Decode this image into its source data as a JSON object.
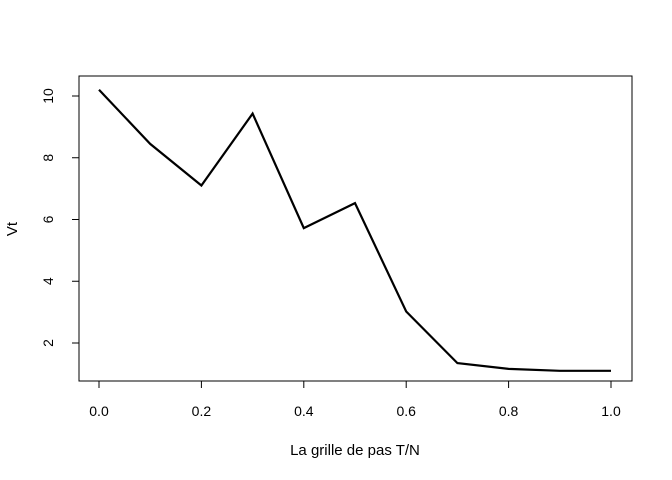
{
  "chart_data": {
    "type": "line",
    "title": "",
    "xlabel": "La grille de pas T/N",
    "ylabel": "Vt",
    "xlim": [
      0,
      1
    ],
    "ylim": [
      1.1,
      10.2
    ],
    "xticks": [
      0,
      0.2,
      0.4,
      0.6,
      0.8,
      1.0
    ],
    "xtick_labels": [
      "0.0",
      "0.2",
      "0.4",
      "0.6",
      "0.8",
      "1.0"
    ],
    "yticks": [
      2,
      4,
      6,
      8,
      10
    ],
    "ytick_labels": [
      "2",
      "4",
      "6",
      "8",
      "10"
    ],
    "grid": false,
    "series": [
      {
        "x": [
          0.0,
          0.1,
          0.2,
          0.3,
          0.4,
          0.5,
          0.6,
          0.7,
          0.8,
          0.9,
          1.0
        ],
        "y": [
          10.2,
          8.45,
          7.1,
          9.43,
          5.72,
          6.53,
          3.02,
          1.35,
          1.16,
          1.1,
          1.1
        ]
      }
    ],
    "line_color": "#000000"
  }
}
